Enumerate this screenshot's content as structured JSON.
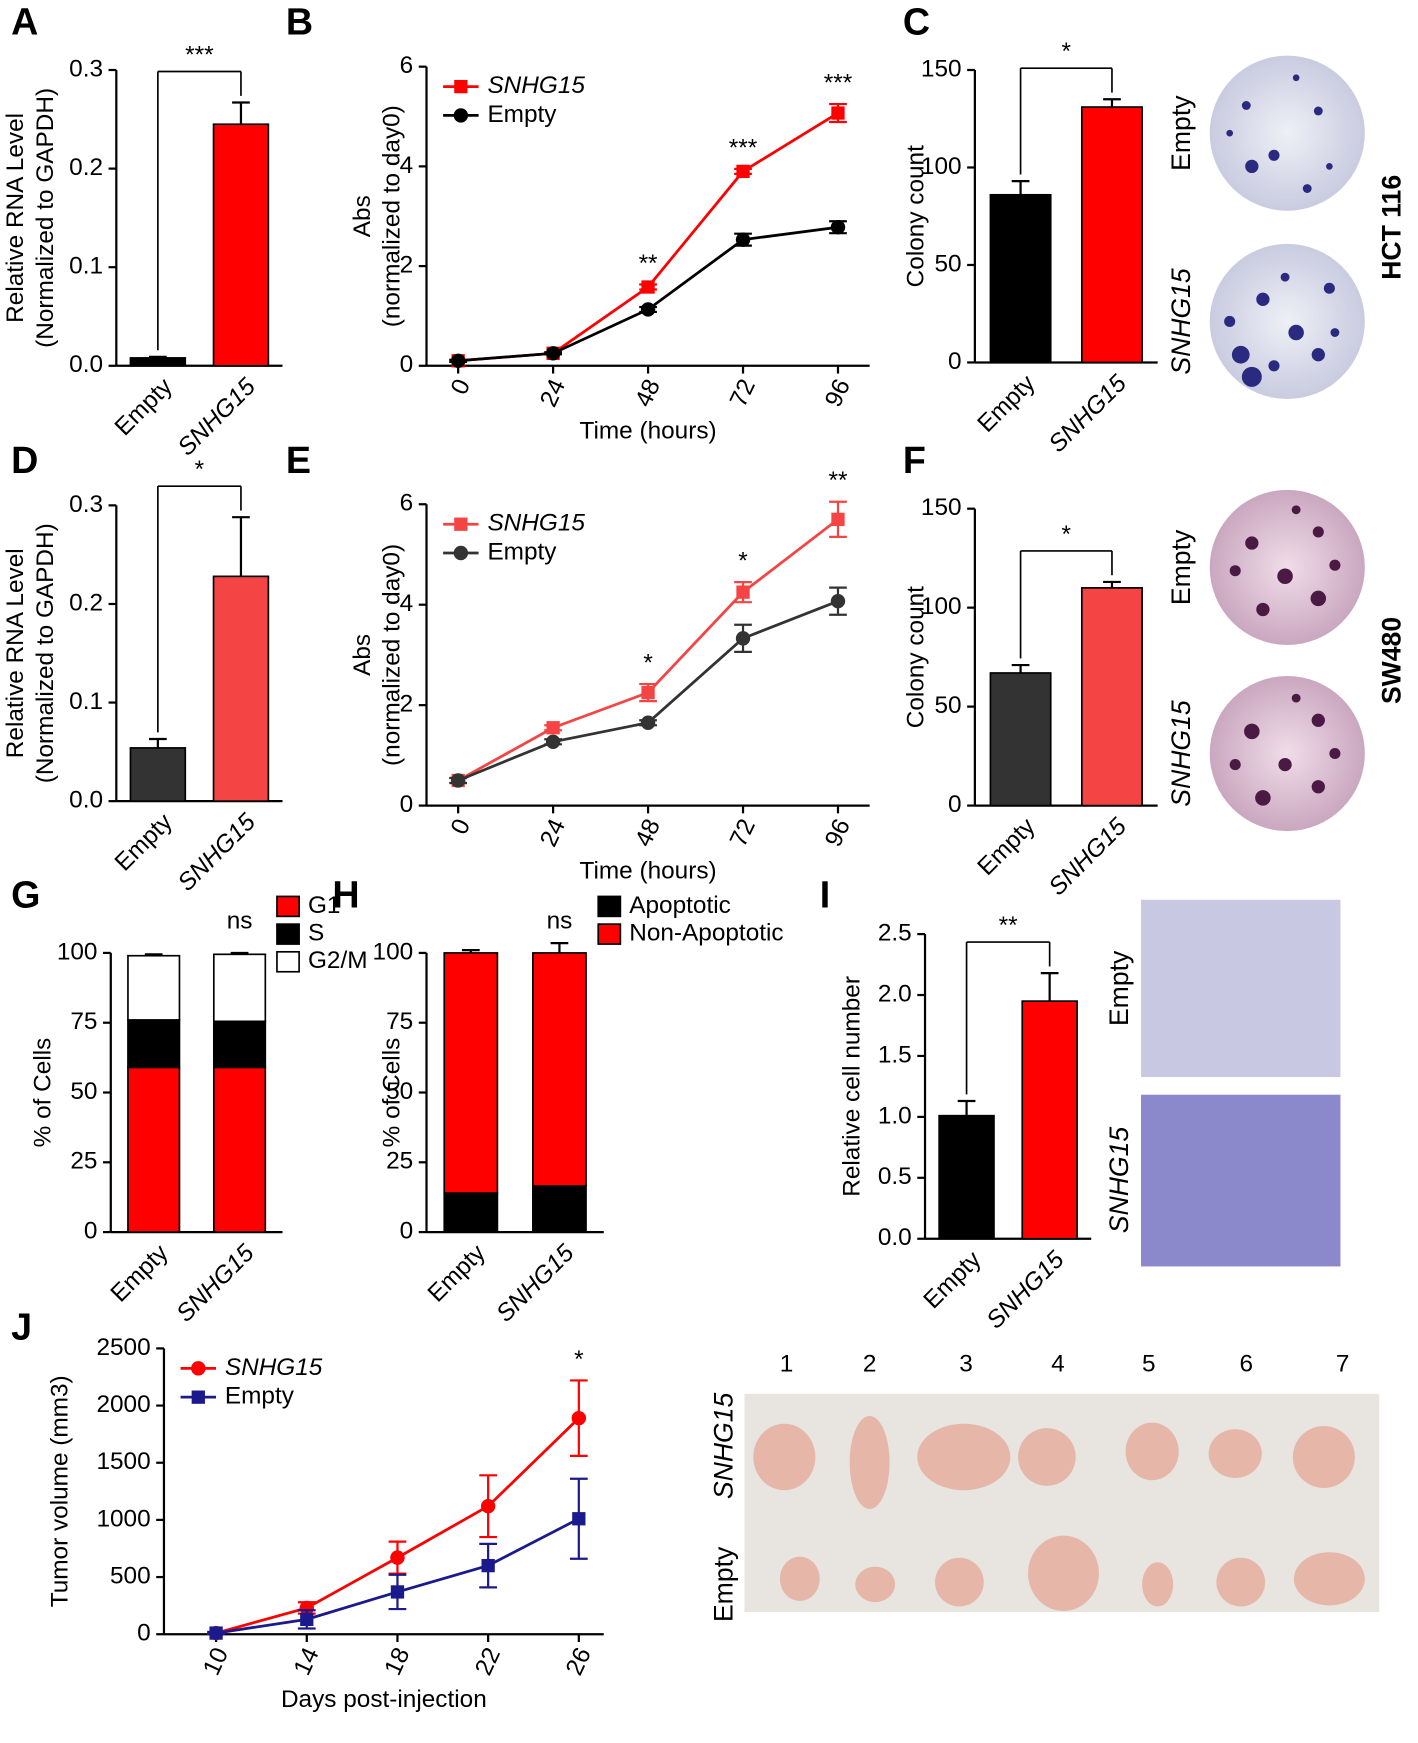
{
  "chart_data": [
    {
      "type": "bar",
      "panel": "A",
      "ylabel": [
        "Relative RNA Level",
        "(Normalized to GAPDH)"
      ],
      "categories": [
        "Empty",
        "SNHG15"
      ],
      "values": [
        0.008,
        0.245
      ],
      "errors": [
        0.001,
        0.022
      ],
      "colors": [
        "#000000",
        "#ff0000"
      ],
      "ylim": [
        0,
        0.3
      ],
      "yticks": [
        {
          "value": 0,
          "label": "0.0"
        },
        0.1,
        0.2,
        0.3
      ],
      "significance": "***"
    },
    {
      "type": "line",
      "panel": "B",
      "ylabel": [
        "Abs",
        "(normalized to day0)"
      ],
      "xlabel": "Time (hours)",
      "x": [
        0,
        24,
        48,
        72,
        96
      ],
      "xlim": [
        -8,
        104
      ],
      "xticks": [
        0,
        24,
        48,
        72,
        96
      ],
      "ylim": [
        0,
        6
      ],
      "yticks": [
        0,
        2,
        4,
        6
      ],
      "legend": "top-left",
      "series": [
        {
          "name": "SNHG15",
          "color": "#ff0000",
          "marker": "square",
          "values": [
            0.1,
            0.25,
            1.58,
            3.9,
            5.07
          ],
          "errors": [
            0.02,
            0.02,
            0.05,
            0.05,
            0.18
          ]
        },
        {
          "name": "Empty",
          "color": "#000000",
          "marker": "circle",
          "values": [
            0.1,
            0.25,
            1.13,
            2.53,
            2.78
          ],
          "errors": [
            0.02,
            0.02,
            0.05,
            0.12,
            0.12
          ]
        }
      ],
      "annotations": [
        {
          "x": 48,
          "text": "**"
        },
        {
          "x": 72,
          "text": "***"
        },
        {
          "x": 96,
          "text": "***"
        }
      ]
    },
    {
      "type": "bar",
      "panel": "C",
      "ylabel": [
        "Colony count"
      ],
      "categories": [
        "Empty",
        "SNHG15"
      ],
      "values": [
        86,
        131
      ],
      "errors": [
        7,
        4
      ],
      "colors": [
        "#000000",
        "#ff0000"
      ],
      "ylim": [
        0,
        150
      ],
      "yticks": [
        0,
        50,
        100,
        150
      ],
      "significance": "*"
    },
    {
      "type": "bar",
      "panel": "D",
      "ylabel": [
        "Relative RNA Level",
        "(Normalized to GAPDH)"
      ],
      "categories": [
        "Empty",
        "SNHG15"
      ],
      "values": [
        0.054,
        0.228
      ],
      "errors": [
        0.009,
        0.06
      ],
      "colors": [
        "#333333",
        "#f44444"
      ],
      "ylim": [
        0,
        0.3
      ],
      "yticks": [
        {
          "value": 0,
          "label": "0.0"
        },
        0.1,
        0.2,
        0.3
      ],
      "significance": "*"
    },
    {
      "type": "line",
      "panel": "E",
      "ylabel": [
        "Abs",
        "(normalized to day0)"
      ],
      "xlabel": "Time (hours)",
      "x": [
        0,
        24,
        48,
        72,
        96
      ],
      "xlim": [
        -8,
        104
      ],
      "xticks": [
        0,
        24,
        48,
        72,
        96
      ],
      "ylim": [
        0,
        6
      ],
      "yticks": [
        0,
        2,
        4,
        6
      ],
      "legend": "top-left",
      "series": [
        {
          "name": "SNHG15",
          "color": "#f44444",
          "marker": "square",
          "values": [
            0.5,
            1.55,
            2.25,
            4.25,
            5.7
          ],
          "errors": [
            0.05,
            0.05,
            0.17,
            0.2,
            0.35
          ]
        },
        {
          "name": "Empty",
          "color": "#333333",
          "marker": "circle",
          "values": [
            0.5,
            1.27,
            1.65,
            3.33,
            4.07
          ],
          "errors": [
            0.05,
            0.05,
            0.05,
            0.27,
            0.27
          ]
        }
      ],
      "annotations": [
        {
          "x": 48,
          "text": "*"
        },
        {
          "x": 72,
          "text": "*"
        },
        {
          "x": 96,
          "text": "**"
        }
      ]
    },
    {
      "type": "bar",
      "panel": "F",
      "ylabel": [
        "Colony count"
      ],
      "categories": [
        "Empty",
        "SNHG15"
      ],
      "values": [
        67,
        110
      ],
      "errors": [
        4,
        3
      ],
      "colors": [
        "#333333",
        "#f44444"
      ],
      "ylim": [
        0,
        150
      ],
      "yticks": [
        0,
        50,
        100,
        150
      ],
      "significance": "*"
    },
    {
      "type": "stacked",
      "panel": "G",
      "ylabel": [
        "% of Cells"
      ],
      "categories": [
        "Empty",
        "SNHG15"
      ],
      "ylim": [
        0,
        100
      ],
      "yticks": [
        0,
        25,
        50,
        75,
        100
      ],
      "annotation": "ns",
      "legend": "top-right",
      "series": [
        {
          "name": "G1",
          "color": "#ff0000",
          "values": [
            59,
            59
          ]
        },
        {
          "name": "S",
          "color": "#000000",
          "values": [
            17,
            16.5
          ],
          "errors": [
            0.5,
            0.4
          ]
        },
        {
          "name": "G2/M",
          "color": "#ffffff",
          "values": [
            23,
            24
          ],
          "errors": [
            0.5,
            0.5
          ]
        }
      ]
    },
    {
      "type": "stacked",
      "panel": "H",
      "ylabel": [
        "% of Cells"
      ],
      "categories": [
        "Empty",
        "SNHG15"
      ],
      "ylim": [
        0,
        100
      ],
      "yticks": [
        0,
        25,
        50,
        75,
        100
      ],
      "annotation": "ns",
      "legend": "top-right",
      "series": [
        {
          "name": "Apoptotic",
          "color": "#000000",
          "values": [
            14,
            16.5
          ],
          "errors": [
            1,
            3.5
          ]
        },
        {
          "name": "Non-Apoptotic",
          "color": "#ff0000",
          "values": [
            86,
            83.5
          ],
          "errors": [
            1,
            3.5
          ]
        }
      ]
    },
    {
      "type": "bar",
      "panel": "I",
      "ylabel": [
        "Relative cell number"
      ],
      "categories": [
        "Empty",
        "SNHG15"
      ],
      "values": [
        1.01,
        1.95
      ],
      "errors": [
        0.12,
        0.23
      ],
      "colors": [
        "#000000",
        "#ff0000"
      ],
      "ylim": [
        0,
        2.5
      ],
      "yticks": [
        {
          "value": 0,
          "label": "0.0"
        },
        0.5,
        {
          "value": 1,
          "label": "1.0"
        },
        1.5,
        {
          "value": 2,
          "label": "2.0"
        },
        2.5
      ],
      "significance": "**"
    },
    {
      "type": "line",
      "panel": "J",
      "ylabel": [
        "Tumor volume (mm3)"
      ],
      "xlabel": "Days post-injection",
      "x": [
        10,
        14,
        18,
        22,
        26
      ],
      "xlim": [
        7.7,
        27.1
      ],
      "xticks": [
        10,
        14,
        18,
        22,
        26
      ],
      "ylim": [
        0,
        2500
      ],
      "yticks": [
        0,
        500,
        1000,
        1500,
        2000,
        2500
      ],
      "legend": "top-left",
      "series": [
        {
          "name": "SNHG15",
          "color": "#ff0000",
          "marker": "circle",
          "values": [
            10,
            230,
            670,
            1120,
            1890
          ],
          "errors": [
            10,
            50,
            140,
            270,
            330
          ]
        },
        {
          "name": "Empty",
          "color": "#1a1a8c",
          "marker": "square",
          "values": [
            10,
            130,
            370,
            600,
            1010
          ],
          "errors": [
            10,
            80,
            150,
            190,
            350
          ]
        }
      ],
      "annotations": [
        {
          "x": 26,
          "text": "*"
        }
      ]
    }
  ],
  "images": {
    "colonies_hct116": {
      "labels": [
        "Empty",
        "SNHG15"
      ],
      "cell_line": "HCT 116"
    },
    "colonies_sw480": {
      "labels": [
        "Empty",
        "SNHG15"
      ],
      "cell_line": "SW480"
    },
    "transwell": {
      "labels": [
        "Empty",
        "SNHG15"
      ]
    },
    "tumors": {
      "columns": [
        "1",
        "2",
        "3",
        "4",
        "5",
        "6",
        "7"
      ],
      "rows": [
        "SNHG15",
        "Empty"
      ]
    }
  }
}
